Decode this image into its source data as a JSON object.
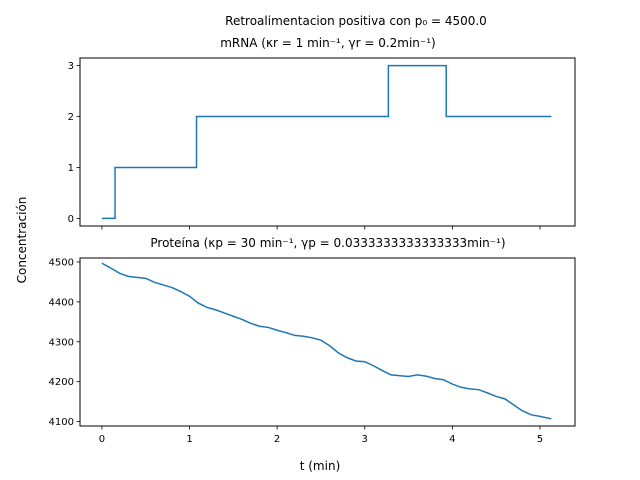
{
  "figure": {
    "suptitle": "Retroalimentacion positiva con p₀ = 4500.0",
    "ylabel": "Concentración",
    "xlabel": "t (min)"
  },
  "colors": {
    "series": "#1f77b4",
    "axes": "#000000"
  },
  "chart_data": [
    {
      "type": "line",
      "title": "mRNA (κr = 1 min⁻¹, γr = 0.2min⁻¹)",
      "xlim": [
        -0.25,
        5.4
      ],
      "ylim": [
        -0.15,
        3.15
      ],
      "xticks": [
        0,
        1,
        2,
        3,
        4,
        5
      ],
      "show_xtick_labels": false,
      "yticks": [
        0,
        1,
        2,
        3
      ],
      "ytick_labels": [
        "0",
        "1",
        "2",
        "3"
      ],
      "step": true,
      "series": [
        {
          "x": [
            0,
            0.15,
            1.08,
            3.27,
            3.93,
            5.13
          ],
          "y": [
            0,
            1,
            2,
            3,
            2,
            2
          ]
        }
      ]
    },
    {
      "type": "line",
      "title": "Proteína (κp = 30 min⁻¹, γp = 0.0333333333333333min⁻¹)",
      "xlim": [
        -0.25,
        5.4
      ],
      "ylim": [
        4089,
        4510
      ],
      "xticks": [
        0,
        1,
        2,
        3,
        4,
        5
      ],
      "xtick_labels": [
        "0",
        "1",
        "2",
        "3",
        "4",
        "5"
      ],
      "yticks": [
        4100,
        4200,
        4300,
        4400,
        4500
      ],
      "ytick_labels": [
        "4100",
        "4200",
        "4300",
        "4400",
        "4500"
      ],
      "series": [
        {
          "x": [
            0,
            0.1,
            0.2,
            0.3,
            0.5,
            0.6,
            0.8,
            0.9,
            1.0,
            1.1,
            1.2,
            1.3,
            1.4,
            1.5,
            1.6,
            1.7,
            1.8,
            1.9,
            2.0,
            2.1,
            2.2,
            2.3,
            2.4,
            2.5,
            2.6,
            2.7,
            2.8,
            2.9,
            3.0,
            3.1,
            3.2,
            3.3,
            3.5,
            3.6,
            3.7,
            3.8,
            3.9,
            4.0,
            4.1,
            4.2,
            4.3,
            4.4,
            4.5,
            4.6,
            4.7,
            4.8,
            4.9,
            5.0,
            5.13
          ],
          "y": [
            4497,
            4485,
            4472,
            4464,
            4459,
            4449,
            4436,
            4426,
            4414,
            4397,
            4386,
            4380,
            4372,
            4364,
            4356,
            4346,
            4339,
            4336,
            4329,
            4323,
            4316,
            4314,
            4310,
            4304,
            4290,
            4272,
            4260,
            4252,
            4250,
            4240,
            4228,
            4217,
            4213,
            4217,
            4214,
            4208,
            4205,
            4194,
            4186,
            4182,
            4180,
            4172,
            4163,
            4157,
            4142,
            4127,
            4117,
            4113,
            4107
          ]
        }
      ]
    }
  ]
}
